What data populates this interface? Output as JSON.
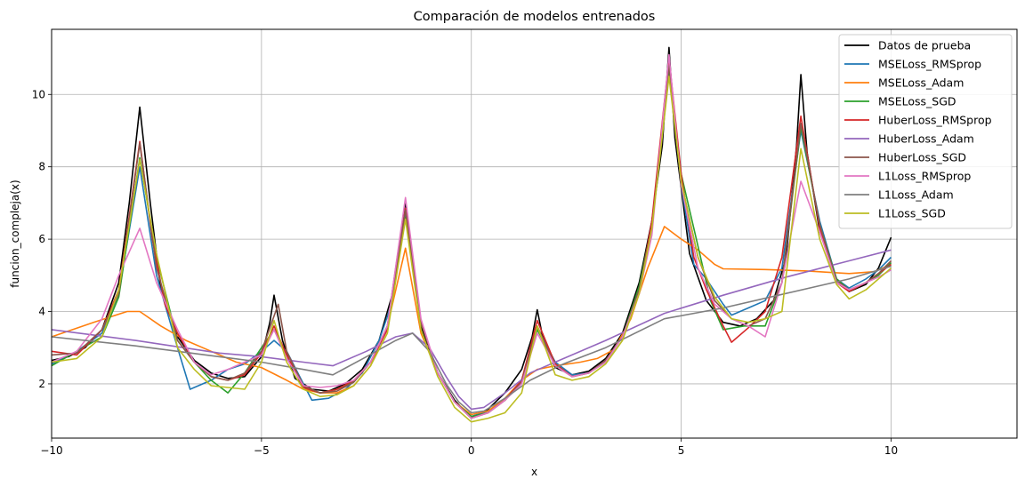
{
  "chart_data": {
    "type": "line",
    "title": "Comparación de modelos entrenados",
    "xlabel": "x",
    "ylabel": "funcion_compleja(x)",
    "xlim": [
      -10,
      13
    ],
    "ylim": [
      0.5,
      11.8
    ],
    "xticks": [
      -10,
      -5,
      0,
      5,
      10
    ],
    "yticks": [
      2,
      4,
      6,
      8,
      10
    ],
    "grid": true,
    "legend_position": "top-right",
    "series": [
      {
        "name": "Datos de prueba",
        "color": "#000000",
        "x": [
          -10,
          -9.6,
          -9.2,
          -8.8,
          -8.4,
          -8.15,
          -7.9,
          -7.65,
          -7.4,
          -7.0,
          -6.6,
          -6.2,
          -5.8,
          -5.4,
          -5.0,
          -4.8,
          -4.7,
          -4.5,
          -4.2,
          -3.8,
          -3.4,
          -3.0,
          -2.6,
          -2.2,
          -1.9,
          -1.7,
          -1.57,
          -1.45,
          -1.2,
          -0.8,
          -0.4,
          0,
          0.4,
          0.8,
          1.2,
          1.45,
          1.57,
          1.7,
          2.0,
          2.4,
          2.8,
          3.2,
          3.6,
          4.0,
          4.3,
          4.55,
          4.71,
          4.85,
          5.2,
          5.6,
          6.0,
          6.4,
          6.8,
          7.2,
          7.5,
          7.75,
          7.85,
          8.0,
          8.3,
          8.7,
          9.0,
          9.4,
          9.7,
          10
        ],
        "y": [
          2.65,
          2.75,
          3.0,
          3.5,
          4.8,
          7.0,
          9.65,
          7.0,
          4.6,
          3.3,
          2.65,
          2.3,
          2.15,
          2.2,
          2.75,
          3.7,
          4.45,
          3.2,
          2.15,
          1.85,
          1.8,
          2.0,
          2.4,
          3.2,
          4.4,
          6.0,
          7.05,
          5.9,
          3.6,
          2.3,
          1.55,
          1.05,
          1.3,
          1.75,
          2.4,
          3.3,
          4.05,
          3.3,
          2.45,
          2.25,
          2.35,
          2.7,
          3.4,
          4.8,
          6.5,
          8.6,
          11.3,
          8.8,
          5.6,
          4.3,
          3.7,
          3.6,
          3.8,
          4.3,
          5.5,
          8.6,
          10.55,
          8.4,
          6.2,
          4.9,
          4.55,
          4.75,
          5.2,
          6.05
        ]
      },
      {
        "name": "MSELoss_RMSprop",
        "color": "#1f77b4",
        "x": [
          -10,
          -9.4,
          -8.8,
          -8.4,
          -7.9,
          -7.5,
          -7.0,
          -6.7,
          -6.2,
          -5.8,
          -5.4,
          -5.0,
          -4.7,
          -4.4,
          -4.0,
          -3.8,
          -3.4,
          -3.0,
          -2.6,
          -2.2,
          -1.9,
          -1.57,
          -1.2,
          -0.8,
          -0.4,
          0,
          0.4,
          0.8,
          1.2,
          1.57,
          2.0,
          2.4,
          2.8,
          3.2,
          3.6,
          4.0,
          4.3,
          4.71,
          5.0,
          5.3,
          5.6,
          6.0,
          6.2,
          6.6,
          7.0,
          7.4,
          7.85,
          8.3,
          8.7,
          9.0,
          9.4,
          9.7,
          10
        ],
        "y": [
          2.55,
          2.9,
          3.4,
          4.5,
          8.0,
          5.0,
          3.0,
          1.85,
          2.1,
          2.4,
          2.55,
          2.9,
          3.2,
          2.9,
          2.0,
          1.55,
          1.6,
          1.85,
          2.3,
          3.2,
          4.2,
          6.7,
          3.7,
          2.3,
          1.5,
          1.1,
          1.25,
          1.55,
          2.1,
          3.55,
          2.6,
          2.25,
          2.3,
          2.65,
          3.3,
          4.6,
          6.4,
          10.9,
          7.5,
          5.3,
          4.9,
          4.2,
          3.9,
          4.1,
          4.3,
          5.2,
          9.0,
          6.5,
          4.9,
          4.65,
          4.9,
          5.15,
          5.5
        ]
      },
      {
        "name": "MSELoss_Adam",
        "color": "#ff7f0e",
        "x": [
          -10,
          -9.0,
          -8.2,
          -7.9,
          -7.4,
          -6.8,
          -6.2,
          -5.6,
          -5.0,
          -4.4,
          -4.0,
          -3.6,
          -3.2,
          -2.8,
          -2.4,
          -2.0,
          -1.57,
          -1.2,
          -0.8,
          -0.4,
          0,
          0.4,
          0.8,
          1.2,
          1.57,
          2.0,
          2.6,
          3.0,
          3.4,
          3.8,
          4.2,
          4.6,
          5.0,
          5.4,
          5.8,
          6.0,
          7.0,
          8.0,
          9.0,
          9.6,
          10
        ],
        "y": [
          3.3,
          3.7,
          4.0,
          4.0,
          3.6,
          3.2,
          2.9,
          2.6,
          2.45,
          2.1,
          1.85,
          1.75,
          1.75,
          1.95,
          2.5,
          3.6,
          5.75,
          3.4,
          2.3,
          1.5,
          1.15,
          1.25,
          1.6,
          2.1,
          2.4,
          2.5,
          2.6,
          2.7,
          2.95,
          3.8,
          5.2,
          6.35,
          6.0,
          5.7,
          5.3,
          5.18,
          5.16,
          5.12,
          5.05,
          5.1,
          5.3
        ]
      },
      {
        "name": "MSELoss_SGD",
        "color": "#2ca02c",
        "x": [
          -10,
          -9.4,
          -8.8,
          -8.4,
          -7.9,
          -7.5,
          -7.0,
          -6.6,
          -6.2,
          -5.8,
          -5.4,
          -5.0,
          -4.7,
          -4.4,
          -4.0,
          -3.6,
          -3.2,
          -2.8,
          -2.4,
          -2.0,
          -1.57,
          -1.2,
          -0.8,
          -0.4,
          0,
          0.4,
          0.8,
          1.2,
          1.57,
          2.0,
          2.4,
          2.8,
          3.2,
          3.6,
          4.0,
          4.3,
          4.71,
          5.0,
          5.4,
          5.7,
          6.0,
          6.5,
          7.0,
          7.4,
          7.85,
          8.3,
          8.7,
          9.0,
          9.4,
          9.7,
          10
        ],
        "y": [
          2.5,
          2.9,
          3.3,
          4.4,
          8.25,
          5.5,
          3.2,
          2.6,
          2.1,
          1.75,
          2.3,
          3.0,
          3.5,
          2.8,
          1.9,
          1.75,
          1.85,
          2.05,
          2.6,
          3.6,
          6.6,
          3.7,
          2.3,
          1.5,
          1.1,
          1.2,
          1.55,
          2.05,
          3.5,
          2.55,
          2.2,
          2.3,
          2.6,
          3.3,
          4.7,
          6.4,
          10.6,
          7.8,
          5.8,
          4.3,
          3.5,
          3.6,
          3.6,
          4.8,
          9.1,
          6.4,
          4.9,
          4.6,
          4.8,
          5.0,
          5.35
        ]
      },
      {
        "name": "HuberLoss_RMSprop",
        "color": "#d62728",
        "x": [
          -10,
          -9.4,
          -8.8,
          -8.4,
          -7.9,
          -7.6,
          -7.3,
          -7.0,
          -6.6,
          -6.2,
          -5.8,
          -5.4,
          -5.0,
          -4.7,
          -4.4,
          -4.0,
          -3.6,
          -3.2,
          -2.8,
          -2.4,
          -2.0,
          -1.57,
          -1.2,
          -0.8,
          -0.4,
          0,
          0.4,
          0.8,
          1.2,
          1.57,
          2.0,
          2.4,
          2.8,
          3.2,
          3.6,
          4.0,
          4.3,
          4.71,
          5.0,
          5.3,
          5.6,
          6.0,
          6.2,
          6.6,
          7.0,
          7.4,
          7.85,
          8.3,
          8.7,
          9.0,
          9.4,
          9.7,
          10
        ],
        "y": [
          2.9,
          2.8,
          3.5,
          4.6,
          8.7,
          6.0,
          4.2,
          3.4,
          2.6,
          2.2,
          2.1,
          2.25,
          2.85,
          3.6,
          2.8,
          1.9,
          1.75,
          1.85,
          2.1,
          2.6,
          3.5,
          6.85,
          3.7,
          2.3,
          1.5,
          1.05,
          1.2,
          1.55,
          2.1,
          3.75,
          2.55,
          2.2,
          2.3,
          2.65,
          3.3,
          4.5,
          6.5,
          11.0,
          7.8,
          5.5,
          4.6,
          3.6,
          3.15,
          3.55,
          4.0,
          5.5,
          9.4,
          6.3,
          4.8,
          4.55,
          4.8,
          5.05,
          5.3
        ]
      },
      {
        "name": "HuberLoss_Adam",
        "color": "#9467bd",
        "x": [
          -10,
          -8,
          -6,
          -5,
          -4,
          -3.3,
          -2.5,
          -1.8,
          -1.4,
          -1.0,
          -0.6,
          -0.3,
          0,
          0.3,
          0.8,
          1.4,
          2.2,
          3.2,
          4.6,
          6.0,
          7.5,
          9.0,
          10
        ],
        "y": [
          3.5,
          3.2,
          2.85,
          2.75,
          2.6,
          2.5,
          2.9,
          3.3,
          3.4,
          3.0,
          2.2,
          1.65,
          1.3,
          1.35,
          1.75,
          2.3,
          2.7,
          3.2,
          3.95,
          4.45,
          4.95,
          5.4,
          5.7
        ]
      },
      {
        "name": "HuberLoss_SGD",
        "color": "#8c564b",
        "x": [
          -10,
          -9.4,
          -8.8,
          -8.4,
          -7.9,
          -7.5,
          -7.0,
          -6.6,
          -6.2,
          -5.8,
          -5.4,
          -5.0,
          -4.6,
          -4.4,
          -4.0,
          -3.6,
          -3.2,
          -2.8,
          -2.4,
          -2.0,
          -1.57,
          -1.2,
          -0.8,
          -0.4,
          0,
          0.4,
          0.8,
          1.2,
          1.57,
          2.0,
          2.4,
          2.8,
          3.2,
          3.6,
          4.0,
          4.3,
          4.71,
          5.0,
          5.4,
          5.8,
          6.2,
          6.6,
          7.0,
          7.4,
          7.85,
          8.3,
          8.7,
          9.0,
          9.4,
          9.7,
          10
        ],
        "y": [
          2.8,
          2.85,
          3.5,
          4.5,
          8.65,
          5.2,
          3.2,
          2.6,
          2.2,
          2.1,
          2.3,
          2.9,
          4.2,
          2.9,
          1.95,
          1.75,
          1.8,
          2.05,
          2.6,
          3.6,
          6.8,
          3.7,
          2.3,
          1.5,
          1.05,
          1.2,
          1.55,
          2.05,
          3.6,
          2.5,
          2.2,
          2.3,
          2.65,
          3.3,
          4.6,
          6.3,
          10.8,
          7.6,
          5.5,
          4.3,
          3.8,
          3.6,
          3.8,
          4.8,
          9.2,
          6.4,
          4.85,
          4.6,
          4.8,
          5.05,
          5.4
        ]
      },
      {
        "name": "L1Loss_RMSprop",
        "color": "#e377c2",
        "x": [
          -10,
          -9.4,
          -8.8,
          -8.4,
          -7.9,
          -7.5,
          -7.0,
          -6.6,
          -6.2,
          -5.8,
          -5.4,
          -5.0,
          -4.7,
          -4.4,
          -4.0,
          -3.6,
          -3.2,
          -2.8,
          -2.4,
          -2.0,
          -1.57,
          -1.2,
          -0.8,
          -0.4,
          0,
          0.4,
          0.8,
          1.2,
          1.57,
          2.0,
          2.4,
          2.8,
          3.2,
          3.6,
          4.0,
          4.3,
          4.71,
          5.0,
          5.4,
          5.8,
          6.2,
          6.6,
          7.0,
          7.4,
          7.85,
          8.3,
          8.7,
          9.0,
          9.4,
          9.7,
          10
        ],
        "y": [
          2.6,
          2.9,
          3.8,
          5.0,
          6.3,
          4.8,
          3.5,
          2.6,
          2.25,
          2.4,
          2.6,
          2.8,
          3.5,
          2.7,
          1.95,
          1.9,
          1.95,
          2.1,
          2.6,
          3.6,
          7.15,
          3.8,
          2.3,
          1.5,
          1.05,
          1.2,
          1.55,
          2.0,
          3.4,
          2.5,
          2.2,
          2.3,
          2.6,
          3.3,
          4.5,
          6.1,
          11.1,
          7.5,
          5.2,
          4.2,
          3.8,
          3.6,
          3.3,
          4.8,
          7.6,
          6.2,
          4.8,
          4.6,
          4.8,
          4.95,
          5.15
        ]
      },
      {
        "name": "L1Loss_Adam",
        "color": "#7f7f7f",
        "x": [
          -10,
          -8,
          -6,
          -5,
          -4,
          -3.3,
          -2.5,
          -1.8,
          -1.4,
          -1.0,
          -0.6,
          -0.3,
          0,
          0.3,
          0.8,
          1.4,
          2.2,
          3.2,
          4.6,
          6.0,
          7.5,
          9.0,
          10
        ],
        "y": [
          3.3,
          3.05,
          2.75,
          2.6,
          2.4,
          2.25,
          2.75,
          3.2,
          3.4,
          2.9,
          2.0,
          1.5,
          1.2,
          1.25,
          1.6,
          2.1,
          2.55,
          3.0,
          3.8,
          4.1,
          4.5,
          4.9,
          5.25
        ]
      },
      {
        "name": "L1Loss_SGD",
        "color": "#bcbd22",
        "x": [
          -10,
          -9.4,
          -8.8,
          -8.4,
          -7.9,
          -7.5,
          -7.0,
          -6.6,
          -6.2,
          -5.8,
          -5.4,
          -5.0,
          -4.7,
          -4.4,
          -4.0,
          -3.6,
          -3.2,
          -2.8,
          -2.4,
          -2.0,
          -1.57,
          -1.2,
          -0.8,
          -0.4,
          0,
          0.4,
          0.8,
          1.2,
          1.57,
          2.0,
          2.4,
          2.8,
          3.2,
          3.6,
          4.0,
          4.3,
          4.71,
          5.0,
          5.4,
          5.8,
          6.2,
          6.6,
          7.0,
          7.4,
          7.85,
          8.3,
          8.7,
          9.0,
          9.4,
          9.7,
          10
        ],
        "y": [
          2.6,
          2.7,
          3.3,
          4.6,
          8.2,
          5.6,
          3.0,
          2.4,
          1.95,
          1.9,
          1.85,
          2.6,
          3.75,
          2.6,
          1.85,
          1.65,
          1.7,
          1.95,
          2.5,
          3.4,
          6.55,
          3.5,
          2.2,
          1.35,
          0.95,
          1.05,
          1.2,
          1.75,
          3.6,
          2.25,
          2.1,
          2.2,
          2.55,
          3.2,
          4.5,
          6.3,
          10.5,
          7.6,
          5.5,
          4.4,
          3.8,
          3.7,
          3.8,
          4.0,
          8.5,
          6.0,
          4.75,
          4.35,
          4.6,
          4.9,
          5.2
        ]
      }
    ]
  }
}
